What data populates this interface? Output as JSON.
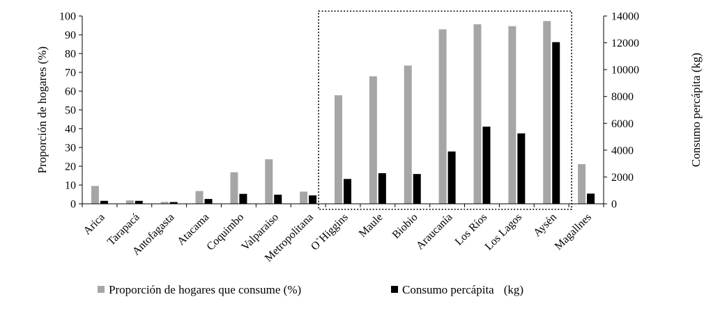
{
  "chart_data": {
    "type": "bar",
    "categories": [
      "Arica",
      "Tarapacá",
      "Antofagasta",
      "Atacama",
      "Coquimbo",
      "Valparaiso",
      "Metropolitana",
      "O`Higgins",
      "Maule",
      "Biobio",
      "Araucanía",
      "Los Ríos",
      "Los Lagos",
      "Aysén",
      "Magallnes"
    ],
    "series": [
      {
        "name": "Proporción de hogares que consume (%)",
        "axis": "left",
        "color": "#a6a6a6",
        "values": [
          9.5,
          1.8,
          1.0,
          6.8,
          16.8,
          23.7,
          6.5,
          57.8,
          67.9,
          73.6,
          92.9,
          95.6,
          94.6,
          97.3,
          21.1
        ]
      },
      {
        "name": "Consumo percápita",
        "unit_label": "(kg)",
        "axis": "right",
        "color": "#000000",
        "values": [
          220,
          220,
          130,
          360,
          740,
          680,
          630,
          1850,
          2280,
          2220,
          3900,
          5750,
          5250,
          12050,
          760
        ]
      }
    ],
    "ylabel": "Proporción de hogares (%)",
    "ylabel_right": "Consumo percápita (kg)",
    "ylim": [
      0,
      100
    ],
    "ylim_right": [
      0,
      14000
    ],
    "yticks": [
      "0",
      "10",
      "20",
      "30",
      "40",
      "50",
      "60",
      "70",
      "80",
      "90",
      "100"
    ],
    "yticks_right": [
      "0",
      "2000",
      "4000",
      "6000",
      "8000",
      "10000",
      "12000",
      "14000"
    ],
    "highlight": {
      "from_category": "O`Higgins",
      "to_category": "Aysén",
      "style": "dotted-box"
    },
    "legend_position": "bottom"
  }
}
